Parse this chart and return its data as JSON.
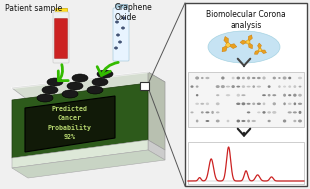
{
  "bg_color": "#f0f0f0",
  "title_text": "Biomolecular Corona\nanalysis",
  "patient_label": "Patient sample",
  "graphene_label": "Graphene\nOxide",
  "screen_text": "Predicted\nCancer\nProbability\n92%",
  "screen_bg": "#111a08",
  "screen_text_color": "#b8d870",
  "device_top_color": "#d5ddd0",
  "device_top_edge": "#aaaaaa",
  "device_right_color": "#b8c0b0",
  "device_front_color": "#2d5a1b",
  "device_side_color": "#3a6820",
  "device_bottom_color": "#e8eee5",
  "arrow_color": "#33bb00",
  "panel_bg": "#ffffff",
  "panel_border": "#444444",
  "gel_bg": "#eeeeee",
  "spectrum_color": "#cc2222",
  "spectrum_bg": "#ffffff",
  "bubble_color": "#b8ddf0",
  "well_color": "#1a1a1a",
  "tube1_body_top": "#dd2222",
  "tube1_body_bot": "#cc2222",
  "tube1_cap": "#ffdd00",
  "tube2_body": "#d8eeff",
  "tube2_cap": "#aaccee",
  "tube2_dots": "#445577"
}
